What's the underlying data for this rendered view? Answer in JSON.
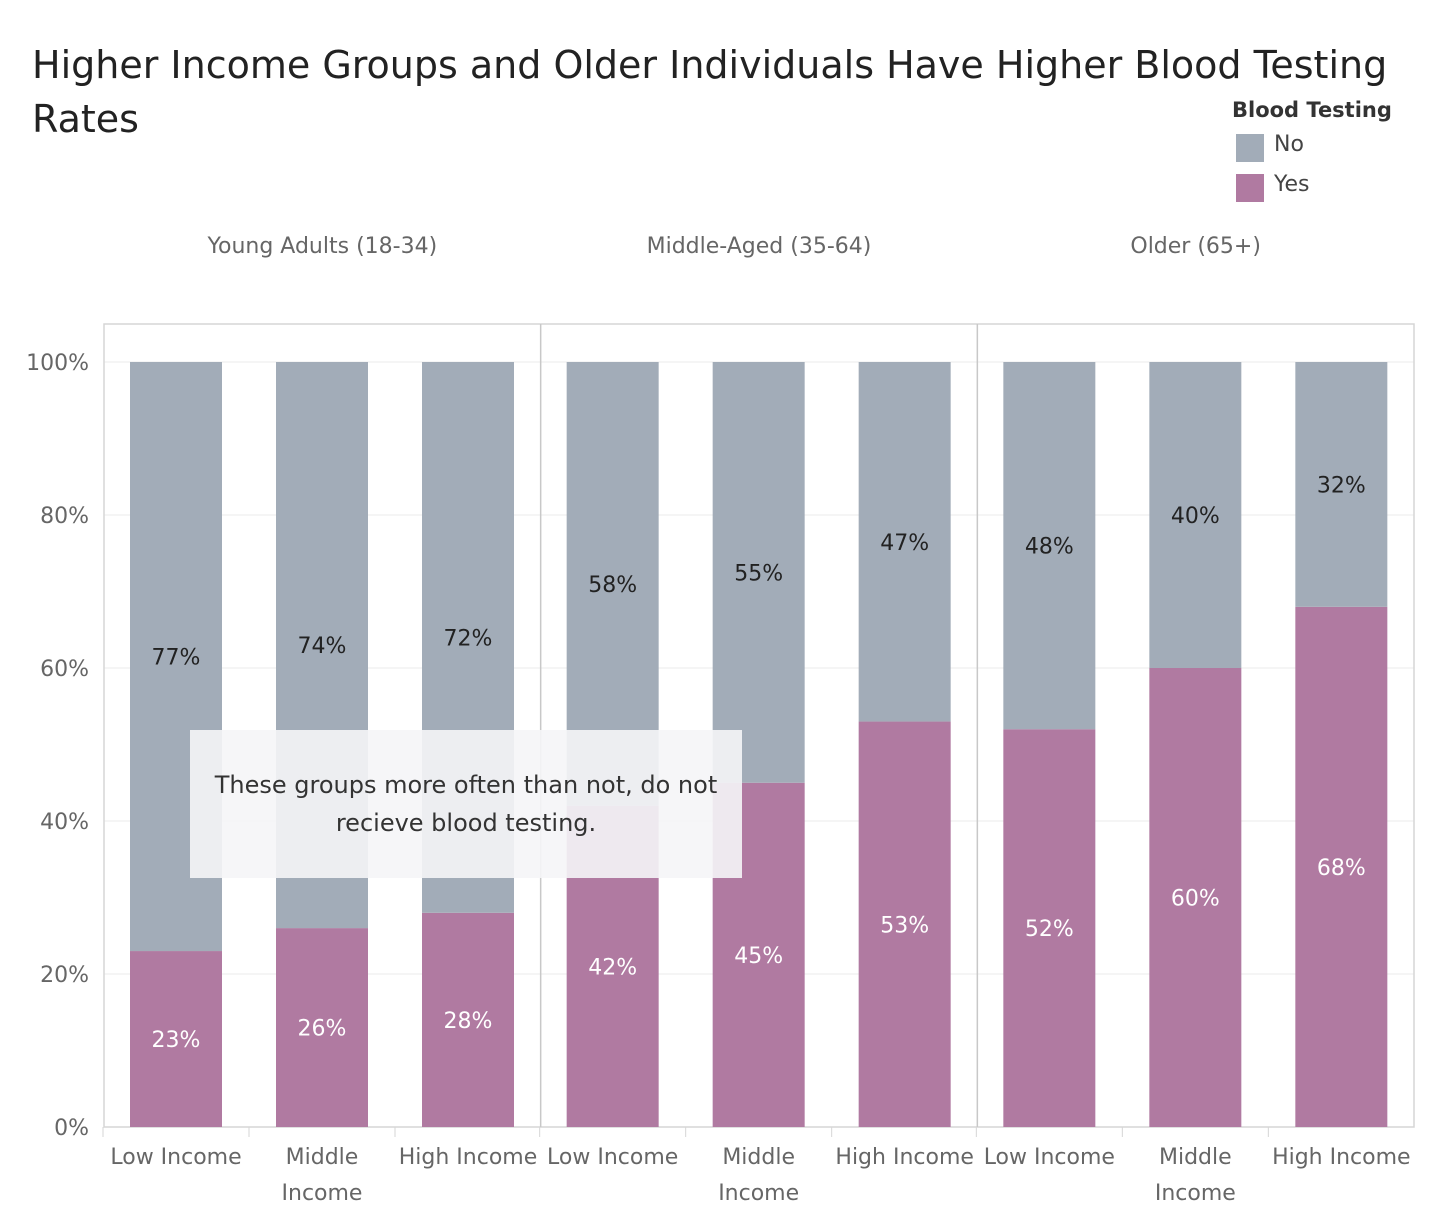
{
  "chart_data": {
    "type": "bar",
    "stacked": true,
    "normalized": true,
    "title": "Higher Income Groups and Older Individuals Have Higher Blood Testing Rates",
    "legend": {
      "title": "Blood Testing",
      "placement": "top-right",
      "items": [
        {
          "name": "No",
          "color": "#a2acb8"
        },
        {
          "name": "Yes",
          "color": "#b07aa1"
        }
      ]
    },
    "ylim": [
      0,
      100
    ],
    "yticks": [
      "0%",
      "20%",
      "40%",
      "60%",
      "80%",
      "100%"
    ],
    "grid": true,
    "panels": [
      {
        "label": "Young Adults (18-34)",
        "categories": [
          "Low Income",
          "Middle Income",
          "High Income"
        ],
        "series": [
          {
            "name": "Yes",
            "values": [
              23,
              26,
              28
            ]
          },
          {
            "name": "No",
            "values": [
              77,
              74,
              72
            ]
          }
        ]
      },
      {
        "label": "Middle-Aged (35-64)",
        "categories": [
          "Low Income",
          "Middle Income",
          "High Income"
        ],
        "series": [
          {
            "name": "Yes",
            "values": [
              42,
              45,
              53
            ]
          },
          {
            "name": "No",
            "values": [
              58,
              55,
              47
            ]
          }
        ]
      },
      {
        "label": "Older (65+)",
        "categories": [
          "Low Income",
          "Middle Income",
          "High Income"
        ],
        "series": [
          {
            "name": "Yes",
            "values": [
              52,
              60,
              68
            ]
          },
          {
            "name": "No",
            "values": [
              48,
              40,
              32
            ]
          }
        ]
      }
    ],
    "annotations": [
      {
        "text": "These groups more often than not, do not recieve blood testing."
      }
    ]
  }
}
